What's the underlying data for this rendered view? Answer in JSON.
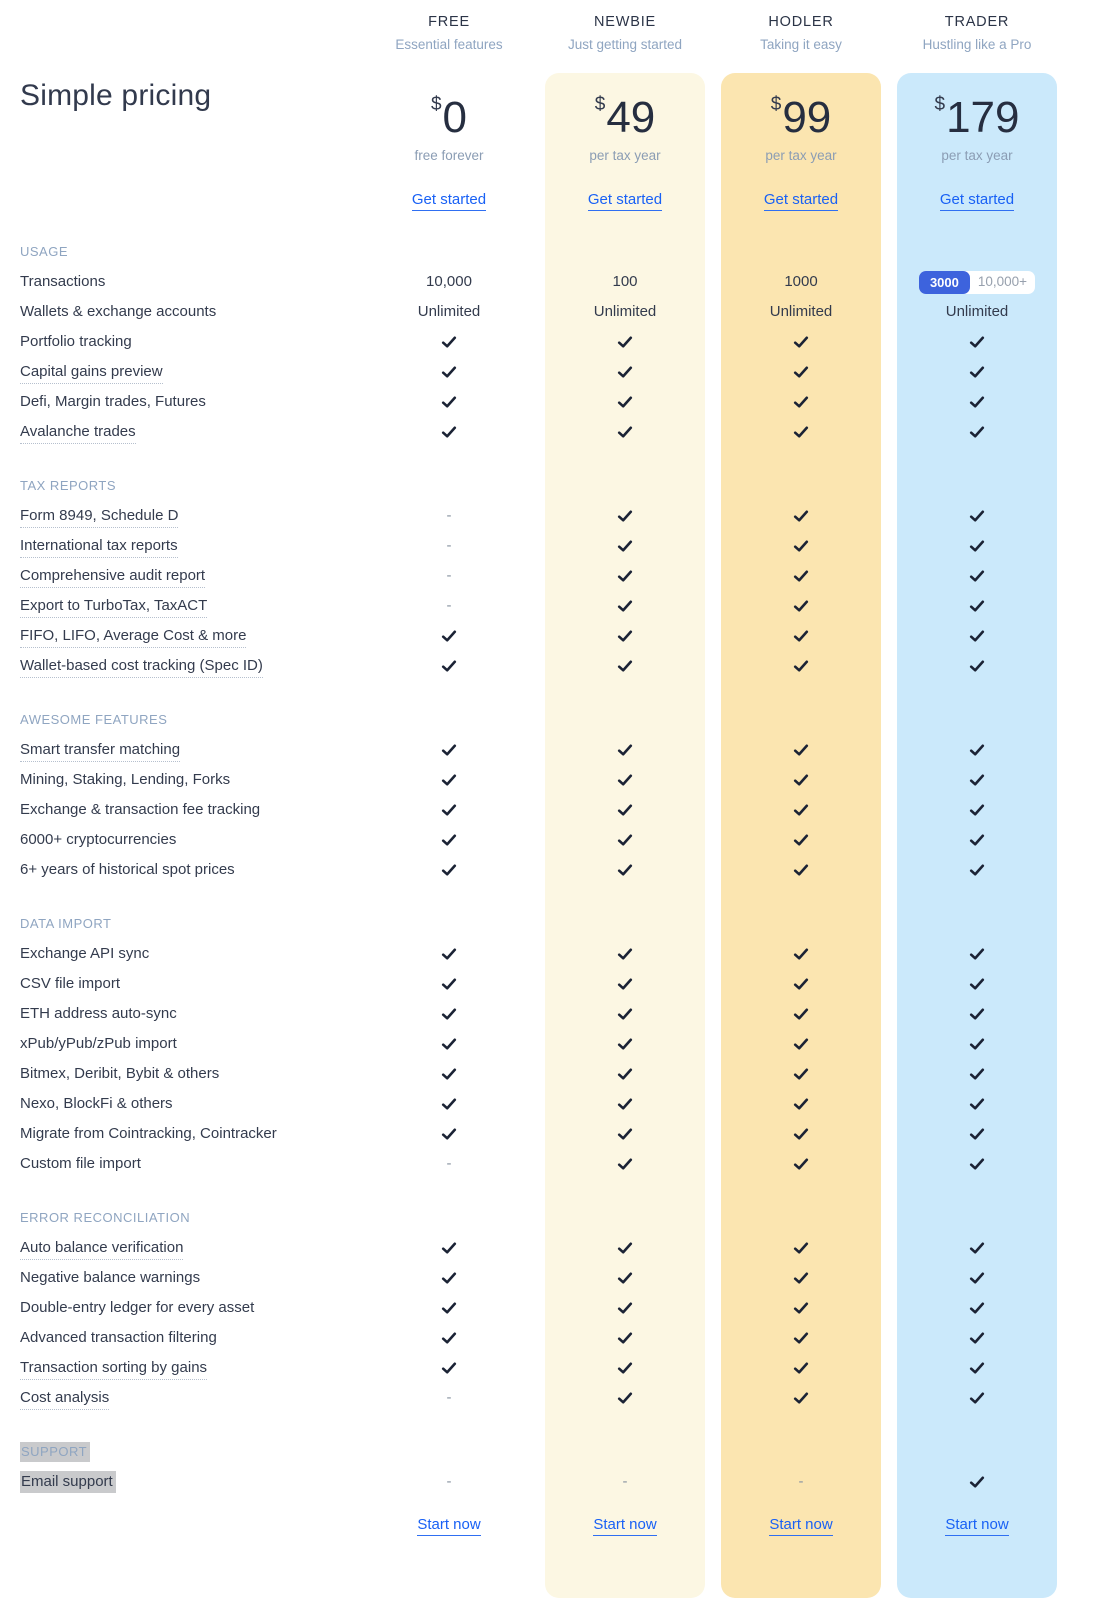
{
  "page_title": "Simple pricing",
  "plans": [
    {
      "name": "FREE",
      "tagline": "Essential features",
      "currency": "$",
      "price": "0",
      "period": "free forever",
      "cta": "Get started",
      "footer_cta": "Start now",
      "bg": "transparent"
    },
    {
      "name": "NEWBIE",
      "tagline": "Just getting started",
      "currency": "$",
      "price": "49",
      "period": "per tax year",
      "cta": "Get started",
      "footer_cta": "Start now",
      "bg": "#fcf7e3"
    },
    {
      "name": "HODLER",
      "tagline": "Taking it easy",
      "currency": "$",
      "price": "99",
      "period": "per tax year",
      "cta": "Get started",
      "footer_cta": "Start now",
      "bg": "#fbe5b0"
    },
    {
      "name": "TRADER",
      "tagline": "Hustling like a Pro",
      "currency": "$",
      "price": "179",
      "period": "per tax year",
      "cta": "Get started",
      "footer_cta": "Start now",
      "bg": "#cbe9fb"
    }
  ],
  "transactions_toggle": {
    "selected": "3000",
    "alt": "10,000+",
    "selected_bg": "#3d63dd"
  },
  "icons": {
    "dash": "-",
    "check_color": "#1b2335"
  },
  "sections": [
    {
      "title": "USAGE",
      "rows": [
        {
          "label": "Transactions",
          "underline": false,
          "cells": [
            {
              "t": "text",
              "v": "10,000"
            },
            {
              "t": "text",
              "v": "100"
            },
            {
              "t": "text",
              "v": "1000"
            },
            {
              "t": "toggle"
            }
          ]
        },
        {
          "label": "Wallets & exchange accounts",
          "underline": false,
          "cells": [
            {
              "t": "text",
              "v": "Unlimited"
            },
            {
              "t": "text",
              "v": "Unlimited"
            },
            {
              "t": "text",
              "v": "Unlimited"
            },
            {
              "t": "text",
              "v": "Unlimited"
            }
          ]
        },
        {
          "label": "Portfolio tracking",
          "underline": false,
          "cells": [
            {
              "t": "check"
            },
            {
              "t": "check"
            },
            {
              "t": "check"
            },
            {
              "t": "check"
            }
          ]
        },
        {
          "label": "Capital gains preview",
          "underline": true,
          "cells": [
            {
              "t": "check"
            },
            {
              "t": "check"
            },
            {
              "t": "check"
            },
            {
              "t": "check"
            }
          ]
        },
        {
          "label": "Defi, Margin trades, Futures",
          "underline": false,
          "cells": [
            {
              "t": "check"
            },
            {
              "t": "check"
            },
            {
              "t": "check"
            },
            {
              "t": "check"
            }
          ]
        },
        {
          "label": "Avalanche trades",
          "underline": true,
          "cells": [
            {
              "t": "check"
            },
            {
              "t": "check"
            },
            {
              "t": "check"
            },
            {
              "t": "check"
            }
          ]
        }
      ]
    },
    {
      "title": "TAX REPORTS",
      "rows": [
        {
          "label": "Form 8949, Schedule D",
          "underline": true,
          "cells": [
            {
              "t": "dash"
            },
            {
              "t": "check"
            },
            {
              "t": "check"
            },
            {
              "t": "check"
            }
          ]
        },
        {
          "label": "International tax reports",
          "underline": true,
          "cells": [
            {
              "t": "dash"
            },
            {
              "t": "check"
            },
            {
              "t": "check"
            },
            {
              "t": "check"
            }
          ]
        },
        {
          "label": "Comprehensive audit report",
          "underline": true,
          "cells": [
            {
              "t": "dash"
            },
            {
              "t": "check"
            },
            {
              "t": "check"
            },
            {
              "t": "check"
            }
          ]
        },
        {
          "label": "Export to TurboTax, TaxACT",
          "underline": true,
          "cells": [
            {
              "t": "dash"
            },
            {
              "t": "check"
            },
            {
              "t": "check"
            },
            {
              "t": "check"
            }
          ]
        },
        {
          "label": "FIFO, LIFO, Average Cost & more",
          "underline": true,
          "cells": [
            {
              "t": "check"
            },
            {
              "t": "check"
            },
            {
              "t": "check"
            },
            {
              "t": "check"
            }
          ]
        },
        {
          "label": "Wallet-based cost tracking (Spec ID)",
          "underline": true,
          "cells": [
            {
              "t": "check"
            },
            {
              "t": "check"
            },
            {
              "t": "check"
            },
            {
              "t": "check"
            }
          ]
        }
      ]
    },
    {
      "title": "AWESOME FEATURES",
      "rows": [
        {
          "label": "Smart transfer matching",
          "underline": true,
          "cells": [
            {
              "t": "check"
            },
            {
              "t": "check"
            },
            {
              "t": "check"
            },
            {
              "t": "check"
            }
          ]
        },
        {
          "label": "Mining, Staking, Lending, Forks",
          "underline": false,
          "cells": [
            {
              "t": "check"
            },
            {
              "t": "check"
            },
            {
              "t": "check"
            },
            {
              "t": "check"
            }
          ]
        },
        {
          "label": "Exchange & transaction fee tracking",
          "underline": false,
          "cells": [
            {
              "t": "check"
            },
            {
              "t": "check"
            },
            {
              "t": "check"
            },
            {
              "t": "check"
            }
          ]
        },
        {
          "label": "6000+ cryptocurrencies",
          "underline": false,
          "cells": [
            {
              "t": "check"
            },
            {
              "t": "check"
            },
            {
              "t": "check"
            },
            {
              "t": "check"
            }
          ]
        },
        {
          "label": "6+ years of historical spot prices",
          "underline": false,
          "cells": [
            {
              "t": "check"
            },
            {
              "t": "check"
            },
            {
              "t": "check"
            },
            {
              "t": "check"
            }
          ]
        }
      ]
    },
    {
      "title": "DATA IMPORT",
      "rows": [
        {
          "label": "Exchange API sync",
          "underline": false,
          "cells": [
            {
              "t": "check"
            },
            {
              "t": "check"
            },
            {
              "t": "check"
            },
            {
              "t": "check"
            }
          ]
        },
        {
          "label": "CSV file import",
          "underline": false,
          "cells": [
            {
              "t": "check"
            },
            {
              "t": "check"
            },
            {
              "t": "check"
            },
            {
              "t": "check"
            }
          ]
        },
        {
          "label": "ETH address auto-sync",
          "underline": false,
          "cells": [
            {
              "t": "check"
            },
            {
              "t": "check"
            },
            {
              "t": "check"
            },
            {
              "t": "check"
            }
          ]
        },
        {
          "label": "xPub/yPub/zPub import",
          "underline": false,
          "cells": [
            {
              "t": "check"
            },
            {
              "t": "check"
            },
            {
              "t": "check"
            },
            {
              "t": "check"
            }
          ]
        },
        {
          "label": "Bitmex, Deribit, Bybit & others",
          "underline": false,
          "cells": [
            {
              "t": "check"
            },
            {
              "t": "check"
            },
            {
              "t": "check"
            },
            {
              "t": "check"
            }
          ]
        },
        {
          "label": "Nexo, BlockFi & others",
          "underline": false,
          "cells": [
            {
              "t": "check"
            },
            {
              "t": "check"
            },
            {
              "t": "check"
            },
            {
              "t": "check"
            }
          ]
        },
        {
          "label": "Migrate from Cointracking, Cointracker",
          "underline": false,
          "cells": [
            {
              "t": "check"
            },
            {
              "t": "check"
            },
            {
              "t": "check"
            },
            {
              "t": "check"
            }
          ]
        },
        {
          "label": "Custom file import",
          "underline": false,
          "cells": [
            {
              "t": "dash"
            },
            {
              "t": "check"
            },
            {
              "t": "check"
            },
            {
              "t": "check"
            }
          ]
        }
      ]
    },
    {
      "title": "ERROR RECONCILIATION",
      "rows": [
        {
          "label": "Auto balance verification",
          "underline": true,
          "cells": [
            {
              "t": "check"
            },
            {
              "t": "check"
            },
            {
              "t": "check"
            },
            {
              "t": "check"
            }
          ]
        },
        {
          "label": "Negative balance warnings",
          "underline": false,
          "cells": [
            {
              "t": "check"
            },
            {
              "t": "check"
            },
            {
              "t": "check"
            },
            {
              "t": "check"
            }
          ]
        },
        {
          "label": "Double-entry ledger for every asset",
          "underline": false,
          "cells": [
            {
              "t": "check"
            },
            {
              "t": "check"
            },
            {
              "t": "check"
            },
            {
              "t": "check"
            }
          ]
        },
        {
          "label": "Advanced transaction filtering",
          "underline": false,
          "cells": [
            {
              "t": "check"
            },
            {
              "t": "check"
            },
            {
              "t": "check"
            },
            {
              "t": "check"
            }
          ]
        },
        {
          "label": "Transaction sorting by gains",
          "underline": true,
          "cells": [
            {
              "t": "check"
            },
            {
              "t": "check"
            },
            {
              "t": "check"
            },
            {
              "t": "check"
            }
          ]
        },
        {
          "label": "Cost analysis",
          "underline": true,
          "cells": [
            {
              "t": "dash"
            },
            {
              "t": "check"
            },
            {
              "t": "check"
            },
            {
              "t": "check"
            }
          ]
        }
      ]
    },
    {
      "title": "SUPPORT",
      "highlight": true,
      "rows": [
        {
          "label": "Email support",
          "underline": false,
          "highlight": true,
          "cells": [
            {
              "t": "dash"
            },
            {
              "t": "dash"
            },
            {
              "t": "dash"
            },
            {
              "t": "check"
            }
          ]
        }
      ]
    }
  ]
}
